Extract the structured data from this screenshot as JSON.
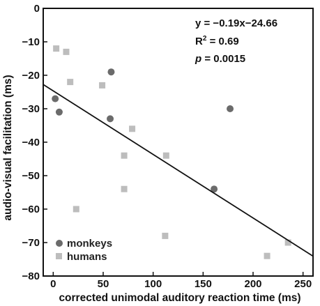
{
  "chart_data": {
    "type": "scatter",
    "xlabel": "corrected unimodal auditory reaction time (ms)",
    "ylabel": "audio-visual facilitation (ms)",
    "xlim": [
      -10,
      260
    ],
    "ylim": [
      -80,
      0
    ],
    "xticks": [
      0,
      50,
      100,
      150,
      200,
      250
    ],
    "yticks": [
      0,
      -10,
      -20,
      -30,
      -40,
      -50,
      -60,
      -70,
      -80
    ],
    "grid": false,
    "legend_position": "bottom-left",
    "series": [
      {
        "name": "monkeys",
        "marker": "circle",
        "color": "#6b6b6b",
        "points": [
          [
            2,
            -27
          ],
          [
            6,
            -31
          ],
          [
            58,
            -19
          ],
          [
            57,
            -33
          ],
          [
            177,
            -30
          ],
          [
            161,
            -54
          ]
        ]
      },
      {
        "name": "humans",
        "marker": "square",
        "color": "#bdbdbd",
        "points": [
          [
            3,
            -12
          ],
          [
            13,
            -13
          ],
          [
            17,
            -22
          ],
          [
            49,
            -23
          ],
          [
            79,
            -36
          ],
          [
            71,
            -44
          ],
          [
            71,
            -54
          ],
          [
            113,
            -44
          ],
          [
            23,
            -60
          ],
          [
            112,
            -68
          ],
          [
            214,
            -74
          ],
          [
            235,
            -70
          ]
        ]
      }
    ],
    "fit_line": {
      "slope": -0.19,
      "intercept": -24.66
    },
    "annotations": {
      "equation": "y = −0.19x−24.66",
      "r2_prefix": "R",
      "r2_sup": "2",
      "r2_value": " = 0.69",
      "p_symbol": "p",
      "p_value": " = 0.0015"
    }
  }
}
